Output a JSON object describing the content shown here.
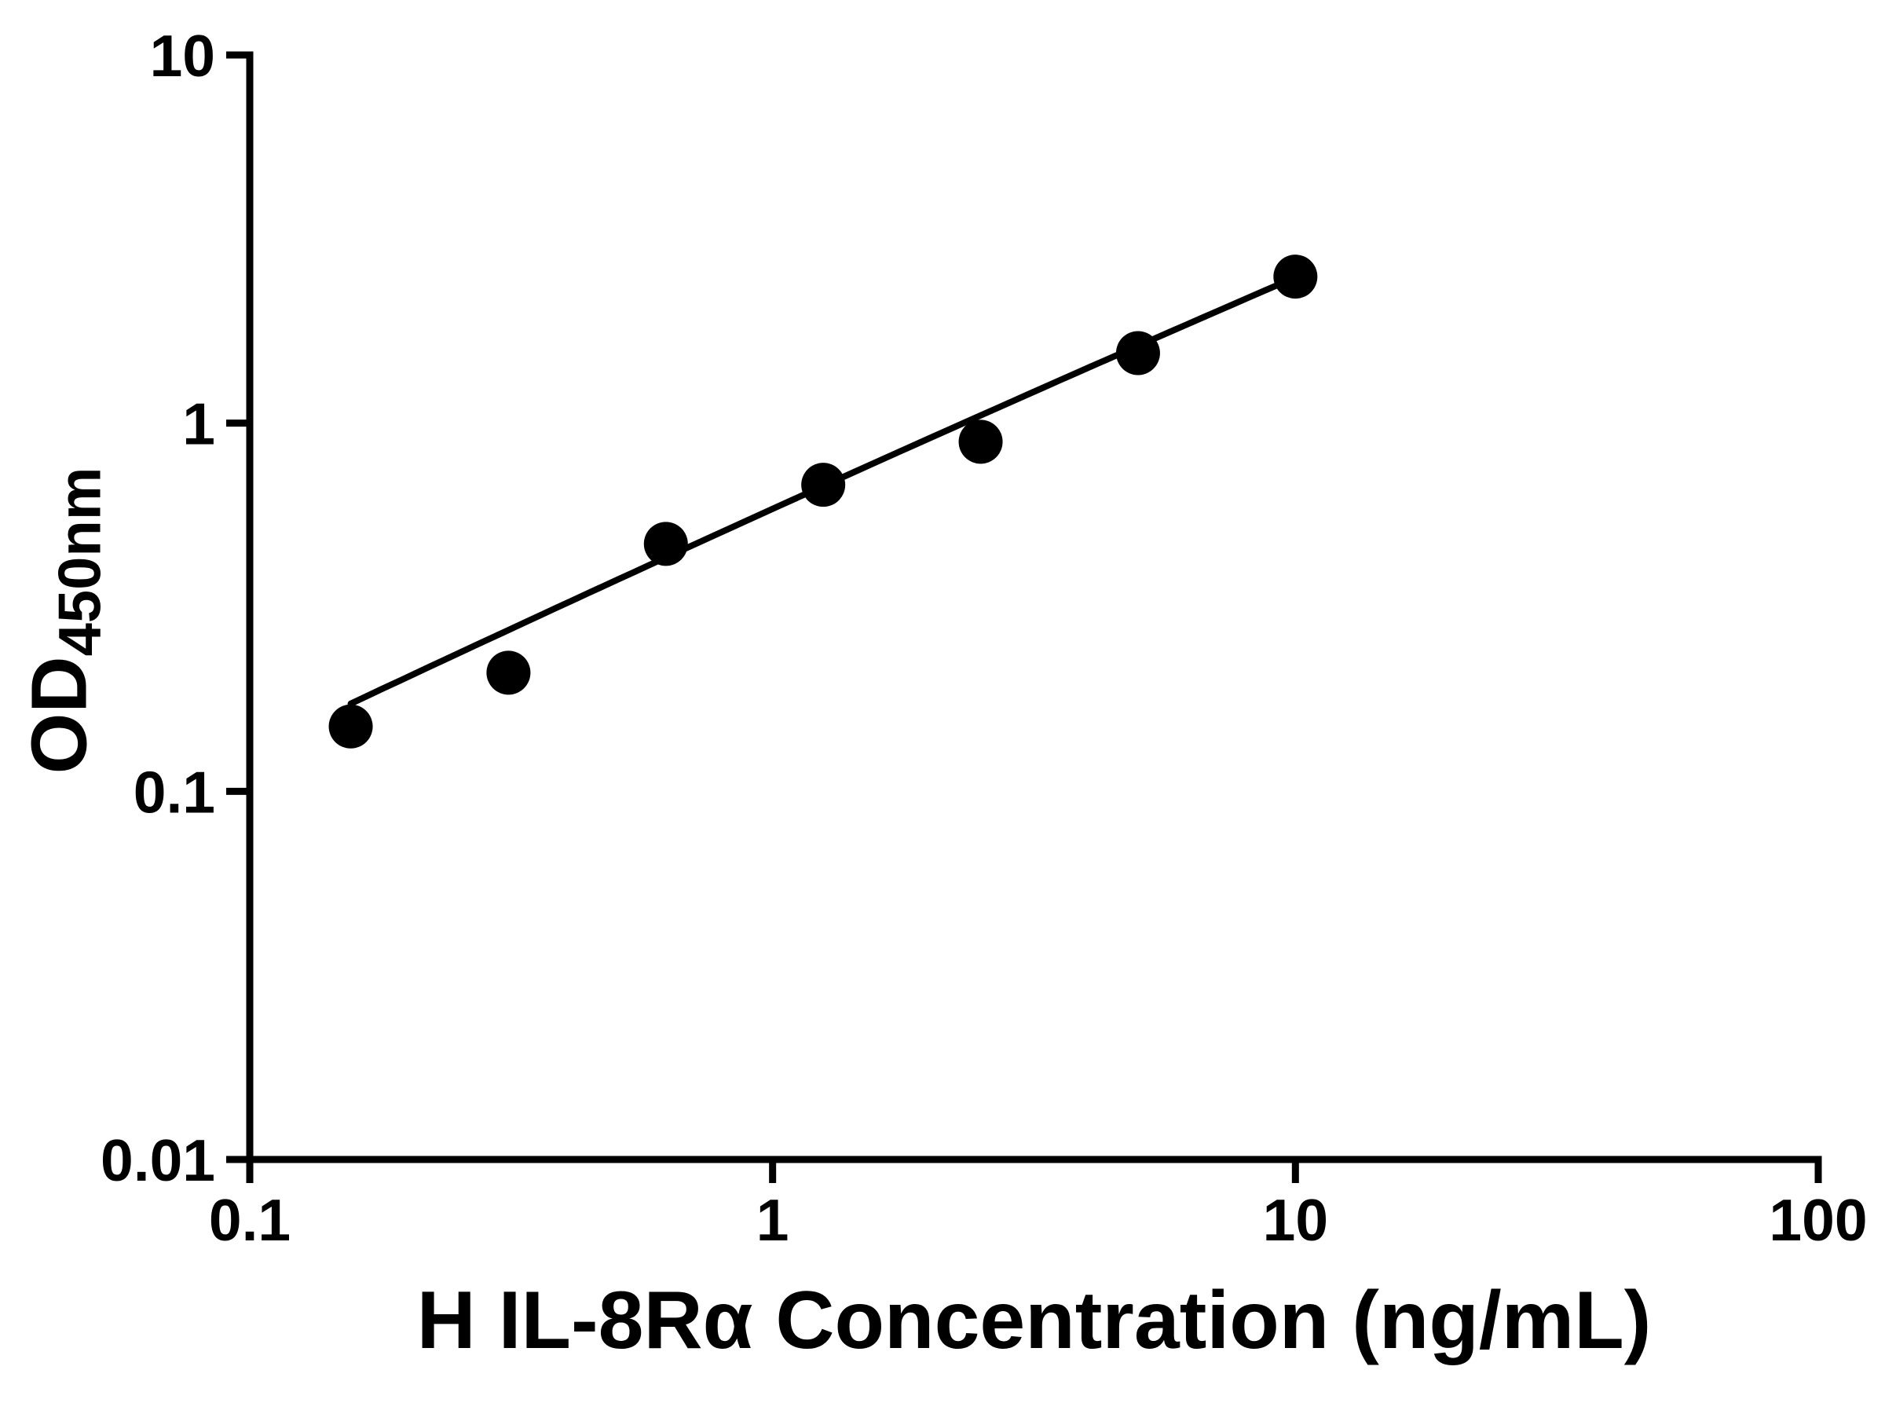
{
  "chart_data": {
    "type": "scatter",
    "title": "",
    "xlabel": "H IL-8Rα Concentration (ng/mL)",
    "ylabel_main": "OD",
    "ylabel_sub": "450nm",
    "x_scale": "log",
    "y_scale": "log",
    "xlim": [
      0.1,
      100
    ],
    "ylim": [
      0.01,
      10
    ],
    "grid": false,
    "legend": "none",
    "x_ticks": [
      {
        "value": 0.1,
        "label": "0.1"
      },
      {
        "value": 1,
        "label": "1"
      },
      {
        "value": 10,
        "label": "10"
      },
      {
        "value": 100,
        "label": "100"
      }
    ],
    "y_ticks": [
      {
        "value": 0.01,
        "label": "0.01"
      },
      {
        "value": 0.1,
        "label": "0.1"
      },
      {
        "value": 1,
        "label": "1"
      },
      {
        "value": 10,
        "label": "10"
      }
    ],
    "points": [
      {
        "x": 0.156,
        "y": 0.15
      },
      {
        "x": 0.3125,
        "y": 0.21
      },
      {
        "x": 0.625,
        "y": 0.47
      },
      {
        "x": 1.25,
        "y": 0.68
      },
      {
        "x": 2.5,
        "y": 0.89
      },
      {
        "x": 5,
        "y": 1.55
      },
      {
        "x": 10,
        "y": 2.5
      }
    ],
    "fit_line": {
      "description": "power-law fit through standards",
      "anchors": [
        {
          "x": 0.156,
          "y": 0.173
        },
        {
          "x": 1.0,
          "y": 0.585
        },
        {
          "x": 10,
          "y": 2.49
        }
      ]
    },
    "colors": {
      "marker": "#000000",
      "line": "#000000",
      "axis": "#000000",
      "background": "#ffffff"
    }
  }
}
